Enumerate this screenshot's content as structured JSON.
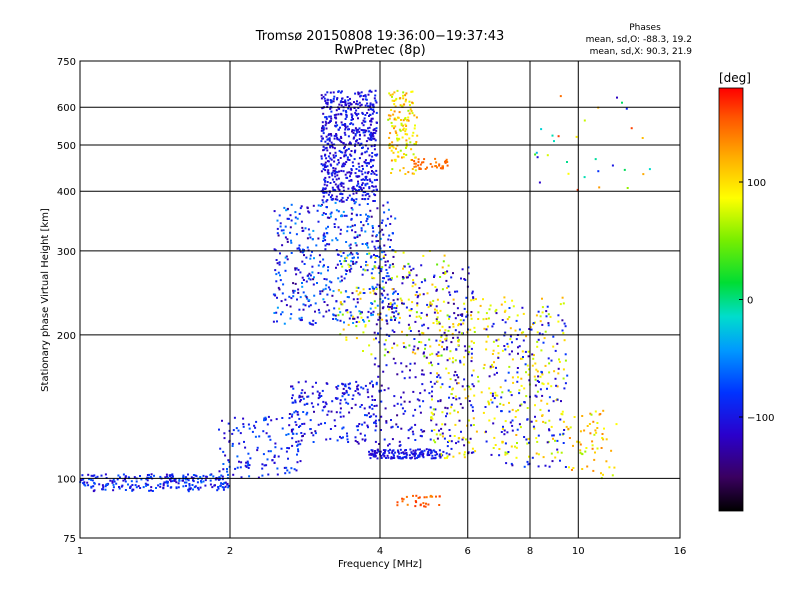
{
  "chart_data": {
    "type": "scatter",
    "title": "Tromsø 20150808 19:36:00−19:37:43",
    "subtitle": "RwPretec (8p)",
    "stats": {
      "heading": "Phases",
      "line1": "mean, sd,O:  -88.3, 19.2",
      "line2": "mean, sd,X:  90.3, 21.9"
    },
    "xlabel": "Frequency [MHz]",
    "ylabel": "Stationary phase Virtual Height [km]",
    "xscale": "log",
    "yscale": "log",
    "xlim": [
      1,
      16
    ],
    "ylim": [
      75,
      750
    ],
    "x_ticks": [
      {
        "value": 1,
        "label": "1"
      },
      {
        "value": 2,
        "label": "2"
      },
      {
        "value": 4,
        "label": "4"
      },
      {
        "value": 6,
        "label": "6"
      },
      {
        "value": 8,
        "label": "8"
      },
      {
        "value": 10,
        "label": "10"
      },
      {
        "value": 16,
        "label": "16"
      }
    ],
    "y_ticks": [
      {
        "value": 75,
        "label": "75"
      },
      {
        "value": 100,
        "label": "100"
      },
      {
        "value": 200,
        "label": "200"
      },
      {
        "value": 300,
        "label": "300"
      },
      {
        "value": 400,
        "label": "400"
      },
      {
        "value": 500,
        "label": "500"
      },
      {
        "value": 600,
        "label": "600"
      },
      {
        "value": 750,
        "label": "750"
      }
    ],
    "grid": true,
    "colorbar": {
      "label": "[deg]",
      "range": [
        -180,
        180
      ],
      "ticks": [
        {
          "value": 100,
          "label": "100"
        },
        {
          "value": 0,
          "label": "0"
        },
        {
          "value": -100,
          "label": "−100"
        }
      ]
    },
    "clusters": [
      {
        "x": [
          3.05,
          3.95
        ],
        "y": [
          380,
          650
        ],
        "phase": [
          -125,
          -80
        ],
        "n": 620
      },
      {
        "x": [
          4.15,
          4.75
        ],
        "y": [
          430,
          650
        ],
        "phase": [
          60,
          135
        ],
        "n": 140
      },
      {
        "x": [
          4.6,
          5.5
        ],
        "y": [
          445,
          468
        ],
        "phase": [
          135,
          155
        ],
        "n": 40
      },
      {
        "x": [
          2.45,
          4.3
        ],
        "y": [
          210,
          380
        ],
        "phase": [
          -140,
          -40
        ],
        "n": 520
      },
      {
        "x": [
          3.3,
          5.5
        ],
        "y": [
          180,
          300
        ],
        "phase": [
          40,
          120
        ],
        "n": 160
      },
      {
        "x": [
          3.9,
          6.2
        ],
        "y": [
          110,
          280
        ],
        "phase": [
          -140,
          -80
        ],
        "n": 340
      },
      {
        "x": [
          5.0,
          9.5
        ],
        "y": [
          110,
          240
        ],
        "phase": [
          60,
          120
        ],
        "n": 320
      },
      {
        "x": [
          6.5,
          9.5
        ],
        "y": [
          105,
          230
        ],
        "phase": [
          -130,
          -70
        ],
        "n": 160
      },
      {
        "x": [
          9.5,
          12.0
        ],
        "y": [
          100,
          140
        ],
        "phase": [
          60,
          140
        ],
        "n": 60
      },
      {
        "x": [
          1.0,
          2.0
        ],
        "y": [
          94,
          102
        ],
        "phase": [
          -120,
          -60
        ],
        "n": 240
      },
      {
        "x": [
          1.9,
          2.8
        ],
        "y": [
          100,
          135
        ],
        "phase": [
          -120,
          -60
        ],
        "n": 140
      },
      {
        "x": [
          2.6,
          4.0
        ],
        "y": [
          118,
          160
        ],
        "phase": [
          -130,
          -70
        ],
        "n": 200
      },
      {
        "x": [
          3.8,
          5.3
        ],
        "y": [
          110,
          115
        ],
        "phase": [
          -120,
          -80
        ],
        "n": 140
      },
      {
        "x": [
          4.3,
          5.3
        ],
        "y": [
          87,
          92
        ],
        "phase": [
          135,
          165
        ],
        "n": 30
      },
      {
        "x": [
          8.0,
          14.0
        ],
        "y": [
          400,
          640
        ],
        "phase": [
          -150,
          170
        ],
        "n": 30
      }
    ]
  }
}
